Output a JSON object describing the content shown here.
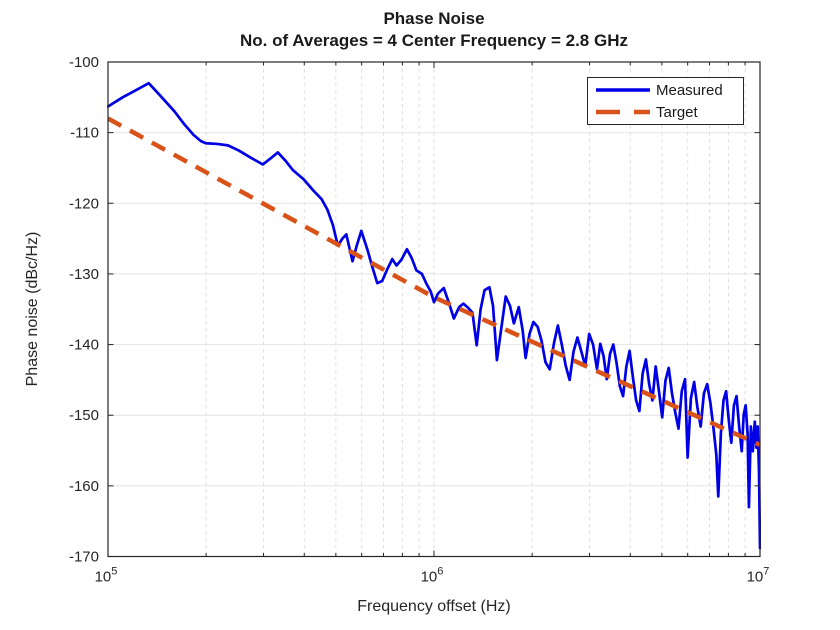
{
  "figure": {
    "kind": "matlab-style-figure",
    "background": "#ffffff"
  },
  "chart_data": {
    "type": "line",
    "title": "Phase Noise",
    "subtitle": "No. of Averages = 4 Center Frequency = 2.8 GHz",
    "xlabel": "Frequency offset (Hz)",
    "ylabel": "Phase noise (dBc/Hz)",
    "x_scale": "log",
    "xlim_hz": [
      100000,
      10000000
    ],
    "ylim": [
      -170,
      -100
    ],
    "grid": true,
    "grid_color": "#e2e2e2",
    "axis_color": "#262626",
    "legend_position": "north-east",
    "x_ticks": [
      {
        "log10": 5,
        "base": "10",
        "exp": "5"
      },
      {
        "log10": 6,
        "base": "10",
        "exp": "6"
      },
      {
        "log10": 7,
        "base": "10",
        "exp": "7"
      }
    ],
    "y_ticks": [
      -100,
      -110,
      -120,
      -130,
      -140,
      -150,
      -160,
      -170
    ],
    "series": [
      {
        "name": "Measured",
        "color": "#0000e6",
        "line_style": "solid",
        "line_width": 2.7,
        "points_log10f_db": [
          [
            5.0,
            -106.3
          ],
          [
            5.045,
            -105.0
          ],
          [
            5.085,
            -104.0
          ],
          [
            5.125,
            -103.0
          ],
          [
            5.165,
            -105.0
          ],
          [
            5.204,
            -107.0
          ],
          [
            5.232,
            -108.7
          ],
          [
            5.262,
            -110.3
          ],
          [
            5.285,
            -111.2
          ],
          [
            5.3,
            -111.5
          ],
          [
            5.335,
            -111.6
          ],
          [
            5.368,
            -111.8
          ],
          [
            5.4,
            -112.5
          ],
          [
            5.44,
            -113.6
          ],
          [
            5.475,
            -114.5
          ],
          [
            5.5,
            -113.6
          ],
          [
            5.521,
            -112.8
          ],
          [
            5.545,
            -114.0
          ],
          [
            5.567,
            -115.3
          ],
          [
            5.6,
            -116.6
          ],
          [
            5.63,
            -118.2
          ],
          [
            5.655,
            -119.4
          ],
          [
            5.673,
            -120.9
          ],
          [
            5.69,
            -123.1
          ],
          [
            5.705,
            -126.0
          ],
          [
            5.719,
            -125.0
          ],
          [
            5.731,
            -124.4
          ],
          [
            5.742,
            -126.6
          ],
          [
            5.75,
            -128.2
          ],
          [
            5.763,
            -126.0
          ],
          [
            5.777,
            -123.9
          ],
          [
            5.796,
            -126.6
          ],
          [
            5.81,
            -128.9
          ],
          [
            5.826,
            -131.3
          ],
          [
            5.841,
            -131.0
          ],
          [
            5.856,
            -129.4
          ],
          [
            5.872,
            -127.9
          ],
          [
            5.885,
            -128.8
          ],
          [
            5.9,
            -128.0
          ],
          [
            5.917,
            -126.5
          ],
          [
            5.931,
            -127.7
          ],
          [
            5.946,
            -129.5
          ],
          [
            5.963,
            -130.0
          ],
          [
            5.978,
            -131.5
          ],
          [
            5.99,
            -132.5
          ],
          [
            6.0,
            -134.0
          ],
          [
            6.012,
            -132.8
          ],
          [
            6.03,
            -132.0
          ],
          [
            6.045,
            -134.0
          ],
          [
            6.061,
            -136.3
          ],
          [
            6.077,
            -134.7
          ],
          [
            6.09,
            -134.2
          ],
          [
            6.105,
            -134.8
          ],
          [
            6.118,
            -135.5
          ],
          [
            6.131,
            -140.1
          ],
          [
            6.143,
            -135.0
          ],
          [
            6.155,
            -132.3
          ],
          [
            6.17,
            -131.9
          ],
          [
            6.181,
            -134.5
          ],
          [
            6.193,
            -142.2
          ],
          [
            6.207,
            -137.5
          ],
          [
            6.22,
            -133.2
          ],
          [
            6.233,
            -134.5
          ],
          [
            6.245,
            -137.0
          ],
          [
            6.26,
            -134.7
          ],
          [
            6.272,
            -138.0
          ],
          [
            6.281,
            -141.9
          ],
          [
            6.293,
            -138.5
          ],
          [
            6.305,
            -136.8
          ],
          [
            6.318,
            -137.5
          ],
          [
            6.33,
            -139.5
          ],
          [
            6.342,
            -142.5
          ],
          [
            6.355,
            -143.5
          ],
          [
            6.368,
            -139.8
          ],
          [
            6.38,
            -137.3
          ],
          [
            6.392,
            -140.0
          ],
          [
            6.404,
            -143.0
          ],
          [
            6.416,
            -145.0
          ],
          [
            6.428,
            -141.0
          ],
          [
            6.44,
            -139.0
          ],
          [
            6.452,
            -141.0
          ],
          [
            6.464,
            -143.0
          ],
          [
            6.476,
            -138.5
          ],
          [
            6.488,
            -140.0
          ],
          [
            6.5,
            -143.5
          ],
          [
            6.51,
            -139.9
          ],
          [
            6.52,
            -141.6
          ],
          [
            6.53,
            -144.9
          ],
          [
            6.54,
            -141.3
          ],
          [
            6.55,
            -140.0
          ],
          [
            6.56,
            -142.6
          ],
          [
            6.57,
            -145.9
          ],
          [
            6.58,
            -147.3
          ],
          [
            6.59,
            -143.1
          ],
          [
            6.6,
            -140.9
          ],
          [
            6.61,
            -144.6
          ],
          [
            6.62,
            -147.9
          ],
          [
            6.63,
            -149.4
          ],
          [
            6.64,
            -144.1
          ],
          [
            6.65,
            -142.1
          ],
          [
            6.66,
            -145.6
          ],
          [
            6.67,
            -147.9
          ],
          [
            6.68,
            -143.1
          ],
          [
            6.69,
            -146.6
          ],
          [
            6.7,
            -150.3
          ],
          [
            6.71,
            -145.1
          ],
          [
            6.72,
            -143.3
          ],
          [
            6.73,
            -146.9
          ],
          [
            6.74,
            -149.6
          ],
          [
            6.75,
            -151.9
          ],
          [
            6.76,
            -146.6
          ],
          [
            6.77,
            -144.9
          ],
          [
            6.778,
            -156.0
          ],
          [
            6.788,
            -147.6
          ],
          [
            6.798,
            -145.3
          ],
          [
            6.808,
            -148.9
          ],
          [
            6.818,
            -151.6
          ],
          [
            6.828,
            -146.9
          ],
          [
            6.838,
            -145.6
          ],
          [
            6.848,
            -148.3
          ],
          [
            6.858,
            -152.1
          ],
          [
            6.866,
            -155.6
          ],
          [
            6.872,
            -161.5
          ],
          [
            6.88,
            -152.6
          ],
          [
            6.888,
            -147.9
          ],
          [
            6.896,
            -146.6
          ],
          [
            6.904,
            -150.6
          ],
          [
            6.912,
            -153.9
          ],
          [
            6.92,
            -148.6
          ],
          [
            6.928,
            -147.3
          ],
          [
            6.936,
            -151.6
          ],
          [
            6.944,
            -155.1
          ],
          [
            6.95,
            -149.9
          ],
          [
            6.956,
            -148.6
          ],
          [
            6.962,
            -152.6
          ],
          [
            6.966,
            -163.0
          ],
          [
            6.972,
            -151.6
          ],
          [
            6.978,
            -155.1
          ],
          [
            6.984,
            -150.9
          ],
          [
            6.989,
            -154.6
          ],
          [
            6.993,
            -151.6
          ],
          [
            6.997,
            -158.1
          ],
          [
            7.0,
            -168.8
          ]
        ]
      },
      {
        "name": "Target",
        "color": "#d95319",
        "line_style": "dashed",
        "line_width": 4.5,
        "points_log10f_db": [
          [
            5.0,
            -108.0
          ],
          [
            6.0,
            -133.3
          ],
          [
            7.0,
            -154.2
          ]
        ]
      }
    ]
  }
}
